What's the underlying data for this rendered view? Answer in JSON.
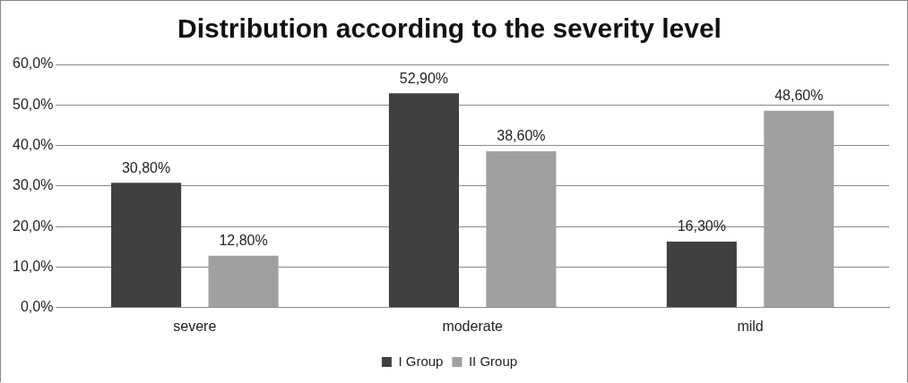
{
  "chart_data": {
    "type": "bar",
    "title": "Distribution according to the severity level",
    "categories": [
      "severe",
      "moderate",
      "mild"
    ],
    "series": [
      {
        "name": "I Group",
        "color": "#404040",
        "values": [
          30.8,
          52.9,
          16.3
        ],
        "value_labels": [
          "30,80%",
          "52,90%",
          "16,30%"
        ]
      },
      {
        "name": "II Group",
        "color": "#a0a0a0",
        "values": [
          12.8,
          38.6,
          48.6
        ],
        "value_labels": [
          "12,80%",
          "38,60%",
          "48,60%"
        ]
      }
    ],
    "ylim": [
      0,
      60
    ],
    "yticks": [
      {
        "value": 0,
        "label": "0,0%"
      },
      {
        "value": 10,
        "label": "10,0%"
      },
      {
        "value": 20,
        "label": "20,0%"
      },
      {
        "value": 30,
        "label": "30,0%"
      },
      {
        "value": 40,
        "label": "40,0%"
      },
      {
        "value": 50,
        "label": "50,0%"
      },
      {
        "value": 60,
        "label": "60,0%"
      }
    ],
    "grid": "y",
    "legend": "bottom"
  }
}
